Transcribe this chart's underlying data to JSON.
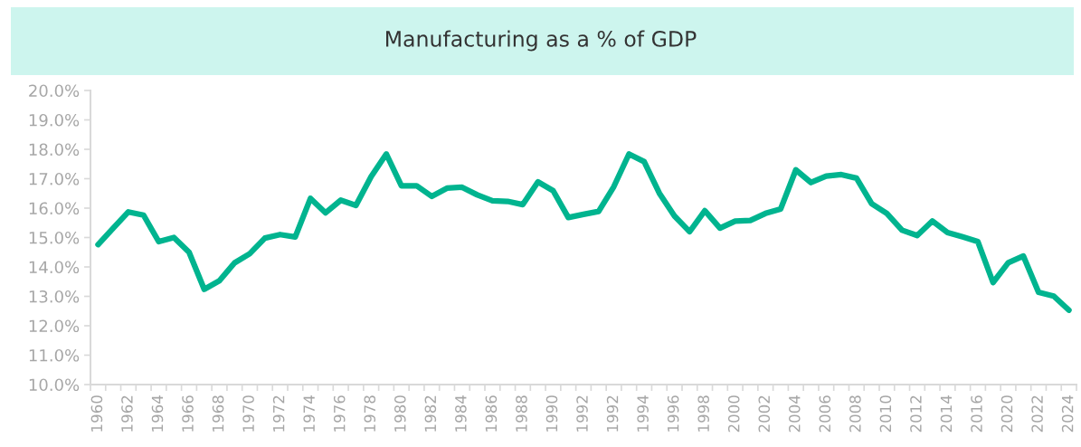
{
  "chart_data": {
    "type": "line",
    "title": "Manufacturing as a % of GDP",
    "categories": [
      "1960",
      null,
      "1962",
      null,
      "1964",
      null,
      "1966",
      null,
      "1968",
      null,
      "1970",
      null,
      "1972",
      null,
      "1974",
      null,
      "1976",
      null,
      "1978",
      null,
      "1980",
      null,
      "1982",
      null,
      "1984",
      null,
      "1986",
      null,
      "1988",
      null,
      "1990",
      null,
      "1992",
      null,
      "1992",
      null,
      "1994",
      null,
      "1996",
      null,
      "1998",
      null,
      "2000",
      null,
      "2002",
      null,
      "2004",
      null,
      "2006",
      null,
      "2008",
      null,
      "2010",
      null,
      "2012",
      null,
      "2014",
      null,
      "2016",
      null,
      "2020",
      null,
      "2022",
      null,
      "2024"
    ],
    "series": [
      {
        "color": "#00b48f",
        "values": [
          14.76,
          15.32,
          15.87,
          15.76,
          14.86,
          15.0,
          14.5,
          13.24,
          13.53,
          14.14,
          14.45,
          14.98,
          15.1,
          15.02,
          16.33,
          15.84,
          16.27,
          16.09,
          17.07,
          17.84,
          16.76,
          16.76,
          16.4,
          16.68,
          16.71,
          16.45,
          16.25,
          16.23,
          16.12,
          16.89,
          16.59,
          15.68,
          15.79,
          15.89,
          16.73,
          17.84,
          17.58,
          16.51,
          15.73,
          15.2,
          15.91,
          15.32,
          15.56,
          15.58,
          15.82,
          15.97,
          17.3,
          16.87,
          17.09,
          17.14,
          17.02,
          16.15,
          15.82,
          15.25,
          15.07,
          15.56,
          15.17,
          15.02,
          14.86,
          13.47,
          14.14,
          14.37,
          13.14,
          13.01,
          12.53
        ]
      }
    ],
    "ylim": [
      10,
      20
    ],
    "yticks": [
      {
        "value": 10,
        "label": "10.0%"
      },
      {
        "value": 11,
        "label": "11.0%"
      },
      {
        "value": 12,
        "label": "12.0%"
      },
      {
        "value": 13,
        "label": "13.0%"
      },
      {
        "value": 14,
        "label": "14.0%"
      },
      {
        "value": 15,
        "label": "15.0%"
      },
      {
        "value": 16,
        "label": "16.0%"
      },
      {
        "value": 17,
        "label": "17.0%"
      },
      {
        "value": 18,
        "label": "18.0%"
      },
      {
        "value": 19,
        "label": "19.0%"
      },
      {
        "value": 20,
        "label": "20.0%"
      }
    ],
    "grid": false,
    "legend": false,
    "marker": "none",
    "line_style": "solid"
  }
}
